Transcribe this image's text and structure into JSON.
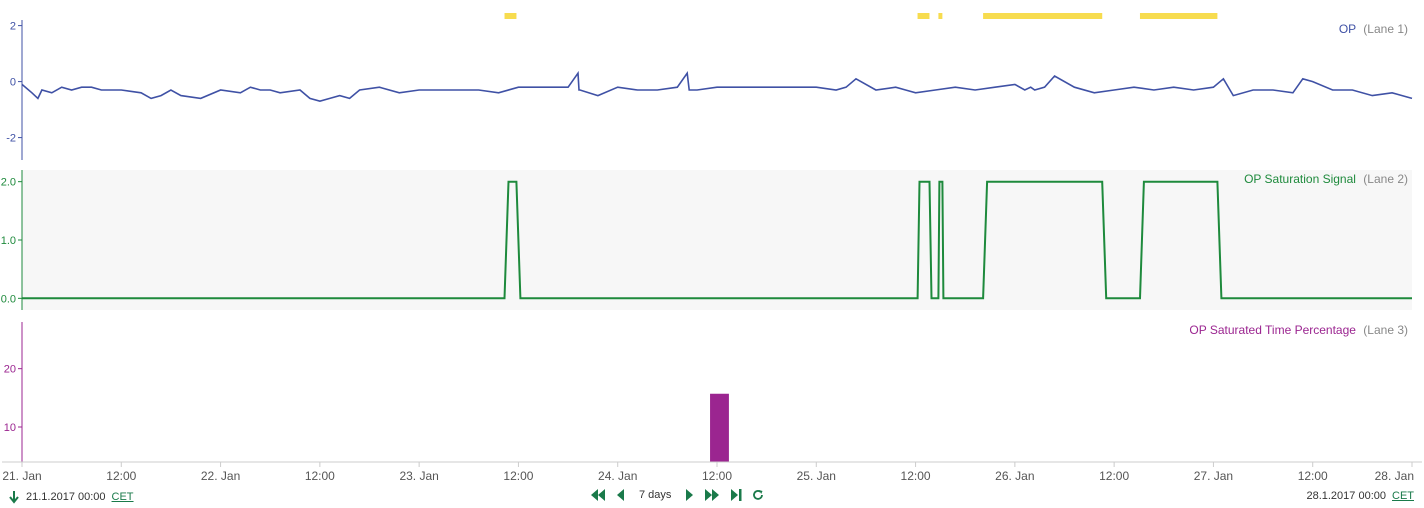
{
  "colors": {
    "op": "#3f51a5",
    "saturation": "#1e8a3c",
    "percentage": "#9b2590",
    "saturation_marker": "#f7dc4f",
    "nav": "#1a7a4a",
    "lane_bg": "#f7f7f7"
  },
  "lanes": [
    {
      "title": "OP",
      "lane_suffix": "(Lane 1)"
    },
    {
      "title": "OP Saturation Signal",
      "lane_suffix": "(Lane 2)"
    },
    {
      "title": "OP Saturated Time Percentage",
      "lane_suffix": "(Lane 3)"
    }
  ],
  "footer": {
    "start_label": "21.1.2017 00:00",
    "end_label": "28.1.2017 00:00",
    "timezone": "CET",
    "range_label": "7 days",
    "icons": [
      "download-icon",
      "fast-back-icon",
      "back-icon",
      "forward-icon",
      "fast-forward-icon",
      "end-icon",
      "refresh-icon"
    ]
  },
  "chart_data": [
    {
      "type": "line",
      "title": "OP",
      "xlabel": "",
      "ylabel": "",
      "x_unit": "days since 21 Jan 2017 00:00",
      "xlim": [
        0,
        7
      ],
      "ylim": [
        -2.8,
        2.2
      ],
      "y_ticks": [
        -2,
        0,
        2
      ],
      "x_tick_labels": [
        "21. Jan",
        "12:00",
        "22. Jan",
        "12:00",
        "23. Jan",
        "12:00",
        "24. Jan",
        "12:00",
        "25. Jan",
        "12:00",
        "26. Jan",
        "12:00",
        "27. Jan",
        "12:00",
        "28. Jan"
      ],
      "series": [
        {
          "name": "OP",
          "x": [
            0.0,
            0.05,
            0.08,
            0.1,
            0.15,
            0.2,
            0.25,
            0.3,
            0.35,
            0.4,
            0.5,
            0.6,
            0.65,
            0.7,
            0.75,
            0.8,
            0.9,
            1.0,
            1.1,
            1.15,
            1.2,
            1.25,
            1.3,
            1.4,
            1.45,
            1.5,
            1.55,
            1.6,
            1.65,
            1.7,
            1.8,
            1.9,
            2.0,
            2.1,
            2.2,
            2.3,
            2.4,
            2.5,
            2.6,
            2.75,
            2.8,
            2.805,
            2.81,
            2.9,
            3.0,
            3.1,
            3.2,
            3.3,
            3.35,
            3.36,
            3.4,
            3.5,
            3.6,
            3.8,
            3.9,
            4.0,
            4.1,
            4.15,
            4.2,
            4.3,
            4.4,
            4.45,
            4.5,
            4.6,
            4.7,
            4.8,
            4.9,
            5.0,
            5.05,
            5.08,
            5.1,
            5.15,
            5.2,
            5.3,
            5.4,
            5.5,
            5.6,
            5.7,
            5.8,
            5.9,
            6.0,
            6.05,
            6.1,
            6.2,
            6.3,
            6.4,
            6.45,
            6.5,
            6.6,
            6.7,
            6.8,
            6.9,
            7.0
          ],
          "y": [
            -0.1,
            -0.4,
            -0.6,
            -0.3,
            -0.4,
            -0.2,
            -0.3,
            -0.2,
            -0.2,
            -0.3,
            -0.3,
            -0.4,
            -0.6,
            -0.5,
            -0.3,
            -0.5,
            -0.6,
            -0.3,
            -0.4,
            -0.2,
            -0.3,
            -0.3,
            -0.4,
            -0.3,
            -0.6,
            -0.7,
            -0.6,
            -0.5,
            -0.6,
            -0.3,
            -0.2,
            -0.4,
            -0.3,
            -0.3,
            -0.3,
            -0.3,
            -0.4,
            -0.2,
            -0.2,
            -0.2,
            0.3,
            -0.3,
            -0.3,
            -0.5,
            -0.2,
            -0.3,
            -0.3,
            -0.2,
            0.3,
            -0.3,
            -0.3,
            -0.2,
            -0.2,
            -0.2,
            -0.2,
            -0.2,
            -0.3,
            -0.2,
            0.1,
            -0.3,
            -0.2,
            -0.3,
            -0.4,
            -0.3,
            -0.2,
            -0.3,
            -0.2,
            -0.1,
            -0.3,
            -0.2,
            -0.3,
            -0.2,
            0.2,
            -0.2,
            -0.4,
            -0.3,
            -0.2,
            -0.3,
            -0.2,
            -0.3,
            -0.2,
            0.1,
            -0.5,
            -0.3,
            -0.3,
            -0.4,
            0.1,
            0.0,
            -0.3,
            -0.3,
            -0.5,
            -0.4,
            -0.6
          ]
        }
      ]
    },
    {
      "type": "line",
      "title": "OP Saturation Signal",
      "xlabel": "",
      "ylabel": "",
      "x_unit": "days since 21 Jan 2017 00:00",
      "xlim": [
        0,
        7
      ],
      "ylim": [
        -0.2,
        2.2
      ],
      "y_ticks": [
        0.0,
        1.0,
        2.0
      ],
      "series": [
        {
          "name": "OP Saturation Signal",
          "x": [
            0.0,
            2.43,
            2.45,
            2.49,
            2.51,
            4.51,
            4.52,
            4.57,
            4.58,
            4.615,
            4.62,
            4.635,
            4.64,
            4.84,
            4.86,
            5.44,
            5.46,
            5.63,
            5.65,
            6.02,
            6.04,
            7.0
          ],
          "y": [
            0,
            0,
            2,
            2,
            0,
            0,
            2,
            2,
            0,
            0,
            2,
            2,
            0,
            0,
            2,
            2,
            0,
            0,
            2,
            2,
            0,
            0
          ]
        }
      ]
    },
    {
      "type": "bar",
      "title": "OP Saturated Time Percentage",
      "xlabel": "",
      "ylabel": "",
      "x_unit": "days since 21 Jan 2017 00:00",
      "xlim": [
        0,
        7
      ],
      "ylim": [
        4,
        28
      ],
      "y_ticks": [
        10,
        20
      ],
      "bars": [
        {
          "x0": 3.465,
          "x1": 3.56,
          "value": 15.7
        }
      ]
    }
  ],
  "saturation_markers": [
    {
      "x0": 2.43,
      "x1": 2.49
    },
    {
      "x0": 4.51,
      "x1": 4.57
    },
    {
      "x0": 4.615,
      "x1": 4.635
    },
    {
      "x0": 4.84,
      "x1": 5.44
    },
    {
      "x0": 5.63,
      "x1": 6.02
    }
  ]
}
